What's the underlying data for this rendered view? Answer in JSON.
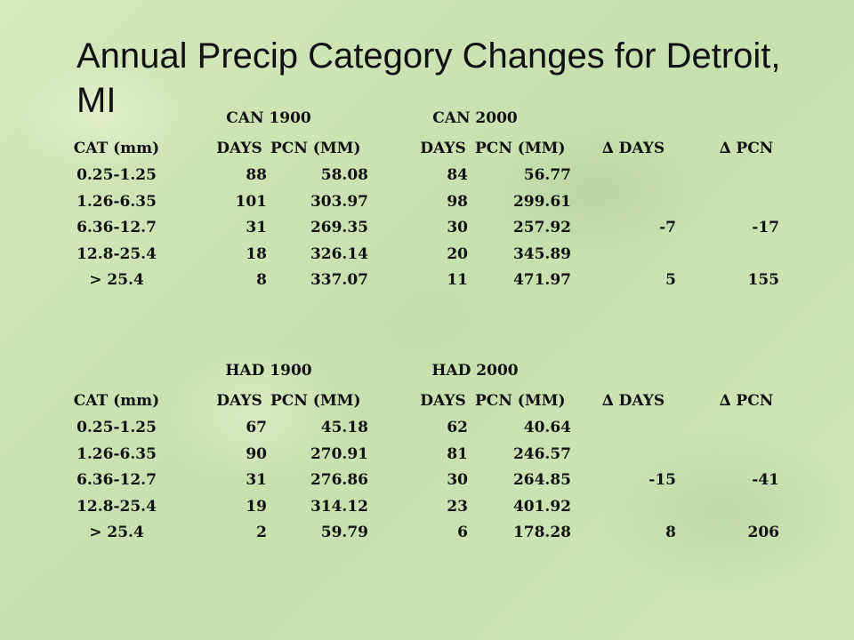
{
  "title": "Annual Precip Category Changes for Detroit, MI",
  "tables": [
    {
      "period1": "CAN 1900",
      "period2": "CAN 2000",
      "headers": {
        "cat": "CAT (mm)",
        "days1": "DAYS",
        "pcn1": "PCN (MM)",
        "days2": "DAYS",
        "pcn2": "PCN (MM)",
        "delta_days": "∆ DAYS",
        "delta_pcn": "∆ PCN"
      },
      "rows": [
        {
          "cat": "0.25-1.25",
          "days1": "88",
          "pcn1": "58.08",
          "days2": "84",
          "pcn2": "56.77",
          "delta_days": "",
          "delta_pcn": ""
        },
        {
          "cat": "1.26-6.35",
          "days1": "101",
          "pcn1": "303.97",
          "days2": "98",
          "pcn2": "299.61",
          "delta_days": "",
          "delta_pcn": ""
        },
        {
          "cat": "6.36-12.7",
          "days1": "31",
          "pcn1": "269.35",
          "days2": "30",
          "pcn2": "257.92",
          "delta_days": "-7",
          "delta_pcn": "-17"
        },
        {
          "cat": "12.8-25.4",
          "days1": "18",
          "pcn1": "326.14",
          "days2": "20",
          "pcn2": "345.89",
          "delta_days": "",
          "delta_pcn": ""
        },
        {
          "cat": "> 25.4",
          "days1": "8",
          "pcn1": "337.07",
          "days2": "11",
          "pcn2": "471.97",
          "delta_days": "5",
          "delta_pcn": "155"
        }
      ]
    },
    {
      "period1": "HAD 1900",
      "period2": "HAD 2000",
      "headers": {
        "cat": "CAT (mm)",
        "days1": "DAYS",
        "pcn1": "PCN (MM)",
        "days2": "DAYS",
        "pcn2": "PCN (MM)",
        "delta_days": "∆ DAYS",
        "delta_pcn": "∆ PCN"
      },
      "rows": [
        {
          "cat": "0.25-1.25",
          "days1": "67",
          "pcn1": "45.18",
          "days2": "62",
          "pcn2": "40.64",
          "delta_days": "",
          "delta_pcn": ""
        },
        {
          "cat": "1.26-6.35",
          "days1": "90",
          "pcn1": "270.91",
          "days2": "81",
          "pcn2": "246.57",
          "delta_days": "",
          "delta_pcn": ""
        },
        {
          "cat": "6.36-12.7",
          "days1": "31",
          "pcn1": "276.86",
          "days2": "30",
          "pcn2": "264.85",
          "delta_days": "-15",
          "delta_pcn": "-41"
        },
        {
          "cat": "12.8-25.4",
          "days1": "19",
          "pcn1": "314.12",
          "days2": "23",
          "pcn2": "401.92",
          "delta_days": "",
          "delta_pcn": ""
        },
        {
          "cat": "> 25.4",
          "days1": "2",
          "pcn1": "59.79",
          "days2": "6",
          "pcn2": "178.28",
          "delta_days": "8",
          "delta_pcn": "206"
        }
      ]
    }
  ]
}
